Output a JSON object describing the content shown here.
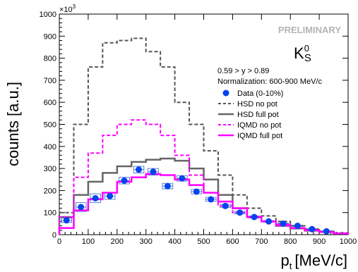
{
  "chart_data": {
    "type": "line",
    "ylabel": "counts [a.u.]",
    "xlabel_main": "p",
    "xlabel_sub": "t",
    "xlabel_unit": "[MeV/c]",
    "multiplier": "×10",
    "multiplier_exp": "3",
    "xlim": [
      0,
      1000
    ],
    "ylim": [
      0,
      1000
    ],
    "x_ticks": [
      0,
      100,
      200,
      300,
      400,
      500,
      600,
      700,
      800,
      900,
      1000
    ],
    "y_ticks": [
      0,
      100,
      200,
      300,
      400,
      500,
      600,
      700,
      800,
      900,
      1000
    ],
    "preliminary": "PRELIMINARY",
    "particle": {
      "base": "K",
      "sup": "0",
      "sub": "S"
    },
    "annotations": [
      "0.59 > y > 0.89",
      "Normalization: 600-900 MeV/c"
    ],
    "bin_edges": [
      0,
      50,
      100,
      150,
      200,
      250,
      300,
      350,
      400,
      450,
      500,
      550,
      600,
      650,
      700,
      750,
      800,
      850,
      900,
      950,
      1000
    ],
    "series": [
      {
        "name": "HSD no pot",
        "style": "dashed",
        "color": "#555555",
        "values": [
          100,
          500,
          760,
          870,
          880,
          890,
          830,
          760,
          600,
          500,
          380,
          270,
          180,
          120,
          85,
          60,
          40,
          25,
          15,
          8
        ]
      },
      {
        "name": "HSD full pot",
        "style": "solid",
        "color": "#666666",
        "values": [
          80,
          180,
          240,
          280,
          310,
          330,
          340,
          345,
          335,
          300,
          250,
          180,
          120,
          80,
          60,
          40,
          28,
          18,
          12,
          6
        ]
      },
      {
        "name": "IQMD no pot",
        "style": "dashed",
        "color": "#ff00ff",
        "values": [
          80,
          260,
          370,
          450,
          500,
          520,
          500,
          450,
          360,
          270,
          190,
          130,
          100,
          80,
          60,
          40,
          30,
          20,
          12,
          6
        ]
      },
      {
        "name": "IQMD full pot",
        "style": "solid",
        "color": "#ff00ff",
        "values": [
          30,
          110,
          160,
          190,
          240,
          260,
          275,
          270,
          250,
          225,
          190,
          150,
          120,
          80,
          60,
          45,
          30,
          20,
          12,
          5
        ]
      }
    ],
    "data_points": {
      "name": "Data (0-10%)",
      "color": "#0044ee",
      "x": [
        25,
        75,
        125,
        175,
        225,
        275,
        325,
        375,
        425,
        475,
        525,
        575,
        625,
        675,
        725,
        775,
        825,
        875,
        925
      ],
      "y": [
        65,
        125,
        165,
        175,
        245,
        295,
        285,
        220,
        255,
        195,
        160,
        130,
        100,
        80,
        60,
        50,
        40,
        25,
        15
      ],
      "sys_band": [
        20,
        40,
        40,
        30,
        30,
        30,
        30,
        25,
        25,
        20,
        18,
        15,
        12,
        10,
        8,
        7,
        6,
        5,
        4
      ]
    }
  }
}
